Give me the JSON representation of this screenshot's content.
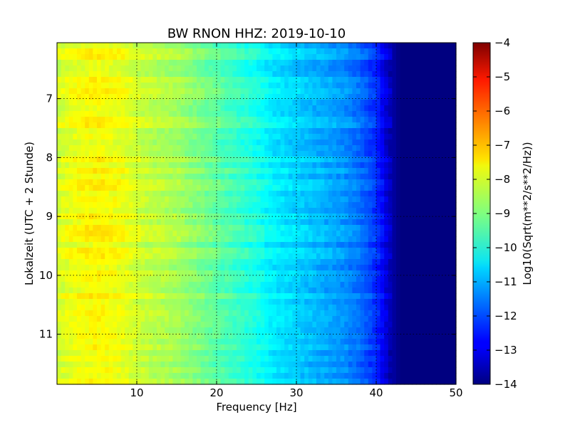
{
  "chart_data": {
    "type": "heatmap",
    "title": "BW RNON HHZ: 2019-10-10",
    "xlabel": "Frequency [Hz]",
    "ylabel": "Lokalzeit (UTC + 2 Stunde)",
    "xlim": [
      0,
      50
    ],
    "ylim": [
      6.05,
      11.85
    ],
    "y_inverted": true,
    "x_ticks": [
      10,
      20,
      30,
      40,
      50
    ],
    "x_tick_labels": [
      "10",
      "20",
      "30",
      "40",
      "50"
    ],
    "y_ticks": [
      7,
      8,
      9,
      10,
      11
    ],
    "y_tick_labels": [
      "7",
      "8",
      "9",
      "10",
      "11"
    ],
    "grid": true,
    "colormap": "jet",
    "colorbar": {
      "label": "Log10(Sqrt(m**2/s**2/Hz))",
      "min": -14,
      "max": -4,
      "ticks": [
        -4,
        -5,
        -6,
        -7,
        -8,
        -9,
        -10,
        -11,
        -12,
        -13,
        -14
      ],
      "tick_labels": [
        "−4",
        "−5",
        "−6",
        "−7",
        "−8",
        "−9",
        "−10",
        "−11",
        "−12",
        "−13",
        "−14"
      ]
    },
    "spectrum_profile": {
      "frequency_hz": [
        0,
        2,
        5,
        8,
        10,
        12,
        15,
        17,
        20,
        22,
        25,
        27,
        30,
        33,
        36,
        38,
        40,
        41,
        42,
        43,
        50
      ],
      "log10_amplitude": [
        -8.2,
        -7.9,
        -7.7,
        -7.9,
        -8.2,
        -8.4,
        -8.6,
        -8.9,
        -9.3,
        -9.6,
        -10.0,
        -10.4,
        -10.7,
        -11.0,
        -11.3,
        -11.7,
        -12.3,
        -12.9,
        -13.6,
        -14.0,
        -14.0
      ]
    }
  }
}
